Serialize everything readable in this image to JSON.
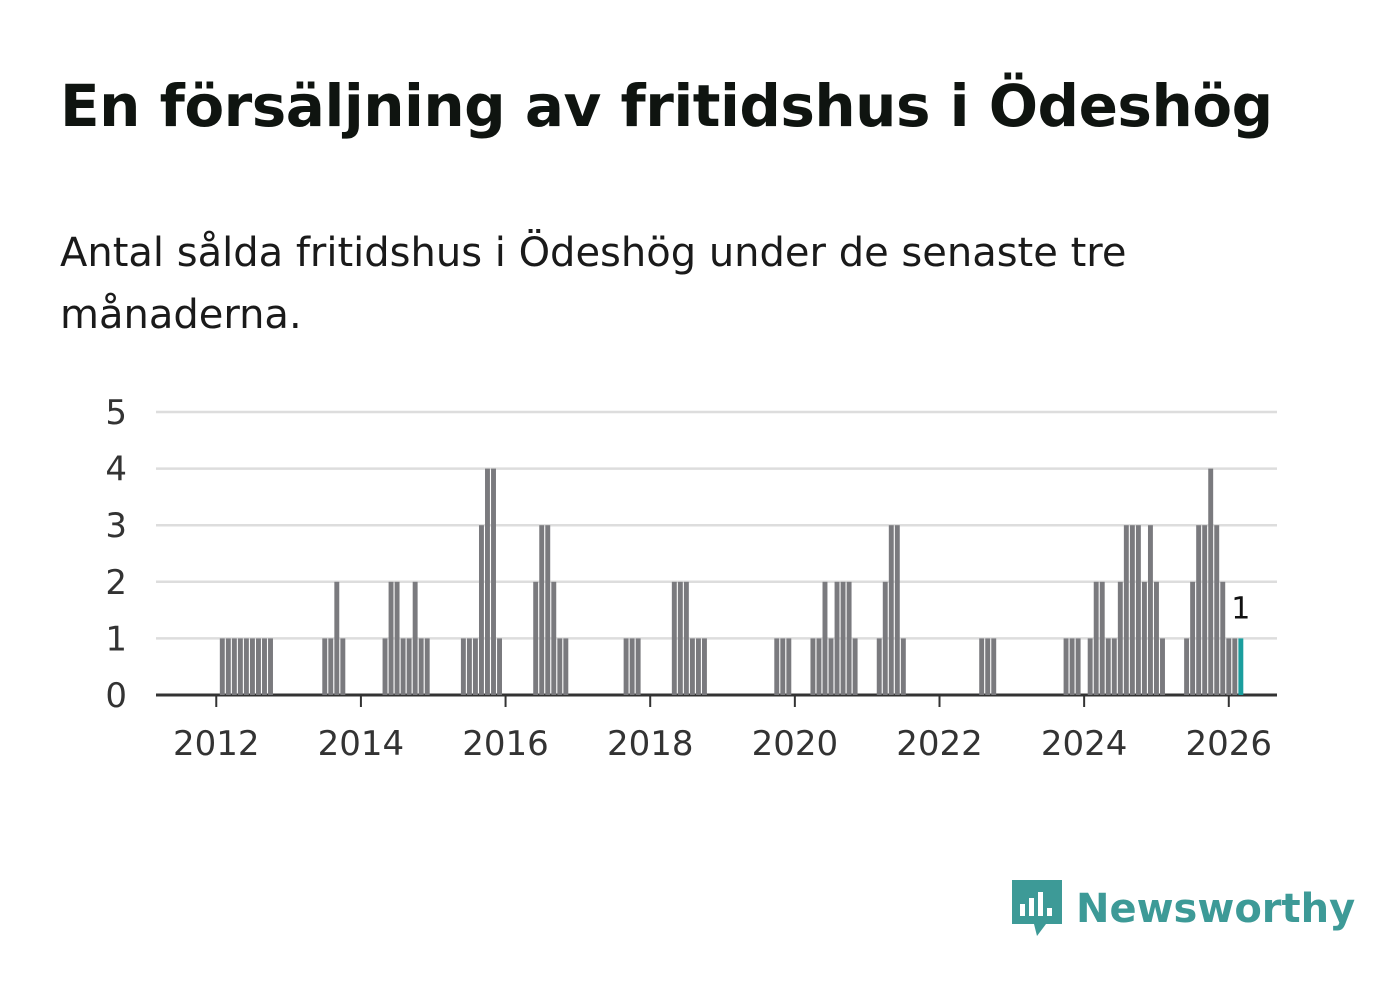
{
  "title": "En försäljning av fritidshus i Ödeshög",
  "subtitle": "Antal sålda fritidshus i Ödeshög under de senaste tre månaderna.",
  "brand": {
    "name": "Newsworthy",
    "color": "#3d9a97",
    "icon": "newsworthy-logo-icon"
  },
  "colors": {
    "bar": "#7a7a7e",
    "highlight": "#1a9e9e",
    "grid": "#dddddd",
    "axis": "#333333"
  },
  "chart_data": {
    "type": "bar",
    "title": "En försäljning av fritidshus i Ödeshög",
    "xlabel": "",
    "ylabel": "",
    "ylim": [
      0,
      5
    ],
    "yticks": [
      0,
      1,
      2,
      3,
      4,
      5
    ],
    "xticks": [
      "2012",
      "2014",
      "2016",
      "2018",
      "2020",
      "2022",
      "2024",
      "2026"
    ],
    "x_start": "2011-04",
    "x_end": "2026-10",
    "grid": true,
    "series": [
      {
        "name": "Antal sålda fritidshus (rullande tre månader)",
        "points": [
          [
            "2012-03",
            1
          ],
          [
            "2012-04",
            1
          ],
          [
            "2012-05",
            1
          ],
          [
            "2012-06",
            1
          ],
          [
            "2012-07",
            1
          ],
          [
            "2012-08",
            1
          ],
          [
            "2012-09",
            1
          ],
          [
            "2012-10",
            1
          ],
          [
            "2012-11",
            1
          ],
          [
            "2013-08",
            1
          ],
          [
            "2013-09",
            1
          ],
          [
            "2013-10",
            2
          ],
          [
            "2013-11",
            1
          ],
          [
            "2014-06",
            1
          ],
          [
            "2014-07",
            2
          ],
          [
            "2014-08",
            2
          ],
          [
            "2014-09",
            1
          ],
          [
            "2014-10",
            1
          ],
          [
            "2014-11",
            2
          ],
          [
            "2014-12",
            1
          ],
          [
            "2015-01",
            1
          ],
          [
            "2015-07",
            1
          ],
          [
            "2015-08",
            1
          ],
          [
            "2015-09",
            1
          ],
          [
            "2015-10",
            3
          ],
          [
            "2015-11",
            4
          ],
          [
            "2015-12",
            4
          ],
          [
            "2016-01",
            1
          ],
          [
            "2016-07",
            2
          ],
          [
            "2016-08",
            3
          ],
          [
            "2016-09",
            3
          ],
          [
            "2016-10",
            2
          ],
          [
            "2016-11",
            1
          ],
          [
            "2016-12",
            1
          ],
          [
            "2017-10",
            1
          ],
          [
            "2017-11",
            1
          ],
          [
            "2017-12",
            1
          ],
          [
            "2018-06",
            2
          ],
          [
            "2018-07",
            2
          ],
          [
            "2018-08",
            2
          ],
          [
            "2018-09",
            1
          ],
          [
            "2018-10",
            1
          ],
          [
            "2018-11",
            1
          ],
          [
            "2019-11",
            1
          ],
          [
            "2019-12",
            1
          ],
          [
            "2020-01",
            1
          ],
          [
            "2020-05",
            1
          ],
          [
            "2020-06",
            1
          ],
          [
            "2020-07",
            2
          ],
          [
            "2020-08",
            1
          ],
          [
            "2020-09",
            2
          ],
          [
            "2020-10",
            2
          ],
          [
            "2020-11",
            2
          ],
          [
            "2020-12",
            1
          ],
          [
            "2021-04",
            1
          ],
          [
            "2021-05",
            2
          ],
          [
            "2021-06",
            3
          ],
          [
            "2021-07",
            3
          ],
          [
            "2021-08",
            1
          ],
          [
            "2022-09",
            1
          ],
          [
            "2022-10",
            1
          ],
          [
            "2022-11",
            1
          ],
          [
            "2023-11",
            1
          ],
          [
            "2023-12",
            1
          ],
          [
            "2024-01",
            1
          ],
          [
            "2024-03",
            1
          ],
          [
            "2024-04",
            2
          ],
          [
            "2024-05",
            2
          ],
          [
            "2024-06",
            1
          ],
          [
            "2024-07",
            1
          ],
          [
            "2024-08",
            2
          ],
          [
            "2024-09",
            3
          ],
          [
            "2024-10",
            3
          ],
          [
            "2024-11",
            3
          ],
          [
            "2024-12",
            2
          ],
          [
            "2025-01",
            3
          ],
          [
            "2025-02",
            2
          ],
          [
            "2025-03",
            1
          ],
          [
            "2025-07",
            1
          ],
          [
            "2025-08",
            2
          ],
          [
            "2025-09",
            3
          ],
          [
            "2025-10",
            3
          ],
          [
            "2025-11",
            4
          ],
          [
            "2025-12",
            3
          ],
          [
            "2026-01",
            2
          ],
          [
            "2026-02",
            1
          ],
          [
            "2026-03",
            1
          ]
        ]
      }
    ],
    "highlight": {
      "period": "2026-04",
      "value": 1,
      "label": "1"
    }
  }
}
